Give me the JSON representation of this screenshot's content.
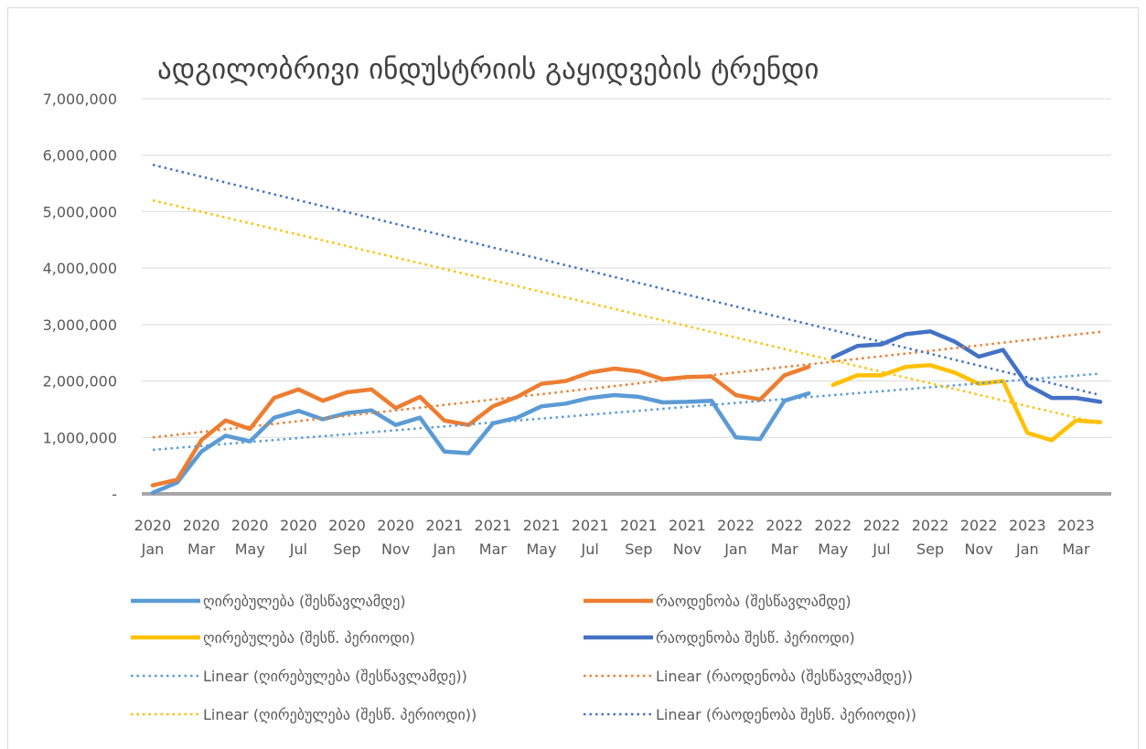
{
  "chart_data": {
    "type": "line",
    "title": "ადგილობრივი ინდუსტრიის გაყიდვების ტრენდი",
    "categories": [
      "2020 Jan",
      null,
      "2020 Mar",
      null,
      "2020 May",
      null,
      "2020 Jul",
      null,
      "2020 Sep",
      null,
      "2020 Nov",
      null,
      "2021 Jan",
      null,
      "2021 Mar",
      null,
      "2021 May",
      null,
      "2021 Jul",
      null,
      "2021 Sep",
      null,
      "2021 Nov",
      null,
      "2022 Jan",
      null,
      "2022 Mar",
      null,
      "2022 May",
      null,
      "2022 Jul",
      null,
      "2022 Sep",
      null,
      "2022 Nov",
      null,
      "2023 Jan",
      null,
      "2023 Mar",
      null
    ],
    "ylim": [
      0,
      7000000
    ],
    "yticks": [
      {
        "value": 0,
        "label": "-"
      },
      {
        "value": 1000000,
        "label": "1,000,000"
      },
      {
        "value": 2000000,
        "label": "2,000,000"
      },
      {
        "value": 3000000,
        "label": "3,000,000"
      },
      {
        "value": 4000000,
        "label": "4,000,000"
      },
      {
        "value": 5000000,
        "label": "5,000,000"
      },
      {
        "value": 6000000,
        "label": "6,000,000"
      },
      {
        "value": 7000000,
        "label": "7,000,000"
      }
    ],
    "grid": true,
    "legend": "bottom",
    "series": [
      {
        "name": "ღირებულება (შესწავლამდე)",
        "color": "#5b9bd5",
        "dashed": false,
        "values": [
          20000,
          200000,
          750000,
          1030000,
          930000,
          1350000,
          1470000,
          1320000,
          1430000,
          1480000,
          1220000,
          1350000,
          750000,
          720000,
          1250000,
          1350000,
          1550000,
          1600000,
          1700000,
          1750000,
          1720000,
          1620000,
          1630000,
          1650000,
          1000000,
          970000,
          1650000,
          1780000,
          null,
          null,
          null,
          null,
          null,
          null,
          null,
          null,
          null,
          null,
          null,
          null
        ]
      },
      {
        "name": "რაოდენობა (შესწავლამდე)",
        "color": "#ed7d31",
        "dashed": false,
        "values": [
          150000,
          250000,
          950000,
          1300000,
          1150000,
          1700000,
          1850000,
          1650000,
          1800000,
          1850000,
          1520000,
          1720000,
          1300000,
          1220000,
          1550000,
          1720000,
          1950000,
          2000000,
          2150000,
          2220000,
          2170000,
          2030000,
          2070000,
          2080000,
          1750000,
          1670000,
          2100000,
          2250000,
          null,
          null,
          null,
          null,
          null,
          null,
          null,
          null,
          null,
          null,
          null,
          null
        ]
      },
      {
        "name": "ღირებულება (შესწ. პერიოდი)",
        "color": "#ffc000",
        "dashed": false,
        "values": [
          null,
          null,
          null,
          null,
          null,
          null,
          null,
          null,
          null,
          null,
          null,
          null,
          null,
          null,
          null,
          null,
          null,
          null,
          null,
          null,
          null,
          null,
          null,
          null,
          null,
          null,
          null,
          null,
          1930000,
          2100000,
          2100000,
          2250000,
          2280000,
          2150000,
          1950000,
          2000000,
          1080000,
          950000,
          1300000,
          1270000
        ]
      },
      {
        "name": "რაოდენობა შესწ. პერიოდი)",
        "color": "#4472c4",
        "dashed": false,
        "values": [
          null,
          null,
          null,
          null,
          null,
          null,
          null,
          null,
          null,
          null,
          null,
          null,
          null,
          null,
          null,
          null,
          null,
          null,
          null,
          null,
          null,
          null,
          null,
          null,
          null,
          null,
          null,
          null,
          2420000,
          2620000,
          2650000,
          2830000,
          2880000,
          2700000,
          2430000,
          2550000,
          1930000,
          1700000,
          1700000,
          1630000
        ]
      },
      {
        "name": "Linear (ღირებულება (შესწავლამდე))",
        "color": "#5b9bd5",
        "dashed": true,
        "values": [
          780000,
          815000,
          849000,
          884000,
          918000,
          953000,
          988000,
          1022000,
          1057000,
          1092000,
          1126000,
          1161000,
          1195000,
          1230000,
          1265000,
          1299000,
          1334000,
          1368000,
          1403000,
          1438000,
          1472000,
          1507000,
          1542000,
          1576000,
          1611000,
          1645000,
          1680000,
          1715000,
          1749000,
          1784000,
          1818000,
          1853000,
          1888000,
          1922000,
          1957000,
          1992000,
          2026000,
          2061000,
          2095000,
          2130000
        ]
      },
      {
        "name": "Linear (რაოდენობა (შესწავლამდე))",
        "color": "#ed7d31",
        "dashed": true,
        "values": [
          1000000,
          1048000,
          1096000,
          1144000,
          1192000,
          1240000,
          1288000,
          1336000,
          1384000,
          1432000,
          1479000,
          1527000,
          1575000,
          1623000,
          1671000,
          1719000,
          1767000,
          1815000,
          1863000,
          1911000,
          1959000,
          2007000,
          2055000,
          2103000,
          2151000,
          2199000,
          2247000,
          2295000,
          2343000,
          2391000,
          2438000,
          2486000,
          2534000,
          2582000,
          2630000,
          2678000,
          2726000,
          2774000,
          2822000,
          2870000
        ]
      },
      {
        "name": "Linear (ღირებულება (შესწ. პერიოდი))",
        "color": "#ffc000",
        "dashed": true,
        "values": [
          5200000,
          5099000,
          4997000,
          4896000,
          4795000,
          4694000,
          4592000,
          4491000,
          4390000,
          4288000,
          4187000,
          4086000,
          3985000,
          3883000,
          3782000,
          3681000,
          3579000,
          3478000,
          3377000,
          3276000,
          3174000,
          3073000,
          2972000,
          2870000,
          2769000,
          2668000,
          2567000,
          2465000,
          2364000,
          2263000,
          2162000,
          2060000,
          1959000,
          1858000,
          1756000,
          1655000,
          1554000,
          1453000,
          1351000,
          1250000
        ]
      },
      {
        "name": "Linear (რაოდენობა შესწ. პერიოდი))",
        "color": "#4472c4",
        "dashed": true,
        "values": [
          5830000,
          5725000,
          5621000,
          5516000,
          5412000,
          5307000,
          5202000,
          5098000,
          4993000,
          4888000,
          4784000,
          4679000,
          4574000,
          4470000,
          4365000,
          4261000,
          4156000,
          4051000,
          3947000,
          3842000,
          3738000,
          3633000,
          3528000,
          3424000,
          3319000,
          3214000,
          3110000,
          3005000,
          2900000,
          2796000,
          2691000,
          2587000,
          2482000,
          2377000,
          2273000,
          2168000,
          2064000,
          1959000,
          1854000,
          1750000
        ]
      }
    ]
  }
}
